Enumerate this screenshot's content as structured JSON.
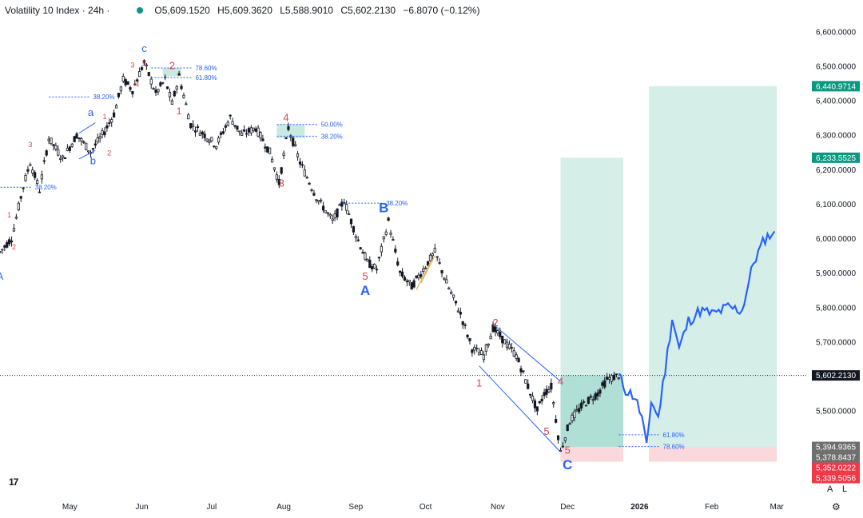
{
  "header": {
    "symbol": "Volatility 10 Index · 24h ·",
    "open": "O5,609.1520",
    "high": "H5,609.3620",
    "low": "L5,588.9010",
    "close": "C5,602.2130",
    "change": "−6.8070 (−0.12%)",
    "status_color": "#089981"
  },
  "buttons": {
    "auto": "A",
    "log": "L",
    "settings_icon": "gear-icon"
  },
  "logo_text": "17",
  "colors": {
    "candle": "#131722",
    "wave_red": "#e0424c",
    "wave_blue": "#2962ff",
    "zone_green": "#b2e0d6",
    "zone_red": "#f8c8cd",
    "badge_green": "#089981",
    "badge_red": "#f23645",
    "badge_grey": "#6e6e6e",
    "projection": "#2962ff"
  },
  "chart_data": {
    "type": "candlestick",
    "ylim": [
      5300,
      6640
    ],
    "y_ticks": [
      "6,600.0000",
      "6,500.0000",
      "6,400.0000",
      "6,300.0000",
      "6,200.0000",
      "6,100.0000",
      "6,000.0000",
      "5,900.0000",
      "5,800.0000",
      "5,700.0000",
      "5,600.0000",
      "5,500.0000"
    ],
    "x_ticks": [
      "May",
      "Jun",
      "Jul",
      "Aug",
      "Sep",
      "Oct",
      "Nov",
      "Dec",
      "2026",
      "Feb",
      "Mar"
    ],
    "x_tick_dates": [
      "2025-05-01",
      "2025-06-01",
      "2025-07-01",
      "2025-08-01",
      "2025-09-01",
      "2025-10-01",
      "2025-11-01",
      "2025-12-01",
      "2026-01-01",
      "2026-02-01",
      "2026-03-01"
    ],
    "x_range": [
      "2025-04-01",
      "2026-03-14"
    ],
    "last_price": 5602.213,
    "price_path": [
      [
        "2025-04-01",
        5960
      ],
      [
        "2025-04-06",
        6000
      ],
      [
        "2025-04-11",
        6150
      ],
      [
        "2025-04-14",
        6220
      ],
      [
        "2025-04-18",
        6140
      ],
      [
        "2025-04-22",
        6290
      ],
      [
        "2025-04-28",
        6230
      ],
      [
        "2025-05-04",
        6300
      ],
      [
        "2025-05-10",
        6250
      ],
      [
        "2025-05-16",
        6310
      ],
      [
        "2025-05-20",
        6360
      ],
      [
        "2025-05-24",
        6460
      ],
      [
        "2025-05-28",
        6430
      ],
      [
        "2025-06-02",
        6510
      ],
      [
        "2025-06-07",
        6420
      ],
      [
        "2025-06-11",
        6460
      ],
      [
        "2025-06-14",
        6390
      ],
      [
        "2025-06-17",
        6470
      ],
      [
        "2025-06-22",
        6330
      ],
      [
        "2025-06-28",
        6300
      ],
      [
        "2025-07-03",
        6270
      ],
      [
        "2025-07-09",
        6350
      ],
      [
        "2025-07-14",
        6300
      ],
      [
        "2025-07-20",
        6320
      ],
      [
        "2025-07-26",
        6250
      ],
      [
        "2025-07-30",
        6160
      ],
      [
        "2025-08-03",
        6320
      ],
      [
        "2025-08-08",
        6220
      ],
      [
        "2025-08-15",
        6120
      ],
      [
        "2025-08-22",
        6050
      ],
      [
        "2025-08-27",
        6110
      ],
      [
        "2025-09-01",
        6010
      ],
      [
        "2025-09-06",
        5930
      ],
      [
        "2025-09-10",
        5910
      ],
      [
        "2025-09-15",
        6050
      ],
      [
        "2025-09-20",
        5900
      ],
      [
        "2025-09-25",
        5860
      ],
      [
        "2025-10-01",
        5920
      ],
      [
        "2025-10-05",
        5960
      ],
      [
        "2025-10-10",
        5870
      ],
      [
        "2025-10-16",
        5780
      ],
      [
        "2025-10-21",
        5680
      ],
      [
        "2025-10-26",
        5660
      ],
      [
        "2025-10-30",
        5740
      ],
      [
        "2025-11-04",
        5700
      ],
      [
        "2025-11-09",
        5660
      ],
      [
        "2025-11-14",
        5570
      ],
      [
        "2025-11-18",
        5500
      ],
      [
        "2025-11-21",
        5550
      ],
      [
        "2025-11-24",
        5570
      ],
      [
        "2025-11-28",
        5380
      ],
      [
        "2025-12-02",
        5470
      ],
      [
        "2025-12-08",
        5520
      ],
      [
        "2025-12-14",
        5550
      ],
      [
        "2025-12-18",
        5590
      ],
      [
        "2025-12-23",
        5602
      ]
    ],
    "projection_path": [
      [
        "2025-12-23",
        5602
      ],
      [
        "2025-12-26",
        5560
      ],
      [
        "2025-12-30",
        5540
      ],
      [
        "2026-01-02",
        5480
      ],
      [
        "2026-01-04",
        5390
      ],
      [
        "2026-01-06",
        5530
      ],
      [
        "2026-01-09",
        5480
      ],
      [
        "2026-01-12",
        5620
      ],
      [
        "2026-01-15",
        5770
      ],
      [
        "2026-01-18",
        5680
      ],
      [
        "2026-01-22",
        5760
      ],
      [
        "2026-01-27",
        5790
      ],
      [
        "2026-02-02",
        5780
      ],
      [
        "2026-02-08",
        5800
      ],
      [
        "2026-02-14",
        5790
      ],
      [
        "2026-02-19",
        5930
      ],
      [
        "2026-02-24",
        6000
      ],
      [
        "2026-02-28",
        6020
      ]
    ],
    "wave_labels": [
      {
        "text": "c",
        "date": "2025-06-02",
        "price": 6540,
        "color": "blue",
        "size": "medium"
      },
      {
        "text": "2",
        "date": "2025-06-14",
        "price": 6490,
        "color": "red",
        "size": "medium"
      },
      {
        "text": "1",
        "date": "2025-06-17",
        "price": 6360,
        "color": "red",
        "size": "small"
      },
      {
        "text": "3",
        "date": "2025-05-28",
        "price": 6495,
        "color": "red",
        "size": "tiny"
      },
      {
        "text": "4",
        "date": "2025-05-30",
        "price": 6440,
        "color": "red",
        "size": "tiny"
      },
      {
        "text": "5",
        "date": "2025-06-02",
        "price": 6500,
        "color": "red",
        "size": "tiny"
      },
      {
        "text": "a",
        "date": "2025-05-10",
        "price": 6355,
        "color": "blue",
        "size": "medium"
      },
      {
        "text": "b",
        "date": "2025-05-11",
        "price": 6215,
        "color": "blue",
        "size": "medium"
      },
      {
        "text": "1",
        "date": "2025-05-16",
        "price": 6345,
        "color": "red",
        "size": "tiny"
      },
      {
        "text": "2",
        "date": "2025-05-18",
        "price": 6240,
        "color": "red",
        "size": "tiny"
      },
      {
        "text": "3",
        "date": "2025-04-14",
        "price": 6265,
        "color": "red",
        "size": "tiny"
      },
      {
        "text": "1",
        "date": "2025-04-05",
        "price": 6060,
        "color": "red",
        "size": "tiny"
      },
      {
        "text": "2",
        "date": "2025-04-07",
        "price": 5968,
        "color": "red",
        "size": "tiny"
      },
      {
        "text": "4",
        "date": "2025-08-02",
        "price": 6340,
        "color": "red",
        "size": "medium"
      },
      {
        "text": "3",
        "date": "2025-07-31",
        "price": 6150,
        "color": "red",
        "size": "medium"
      },
      {
        "text": "B",
        "date": "2025-09-13",
        "price": 6075,
        "color": "blue",
        "size": "large"
      },
      {
        "text": "5",
        "date": "2025-09-05",
        "price": 5880,
        "color": "red",
        "size": "medium"
      },
      {
        "text": "A",
        "date": "2025-09-05",
        "price": 5835,
        "color": "blue",
        "size": "large"
      },
      {
        "text": "2",
        "date": "2025-10-31",
        "price": 5745,
        "color": "red",
        "size": "medium"
      },
      {
        "text": "1",
        "date": "2025-10-24",
        "price": 5570,
        "color": "red",
        "size": "medium"
      },
      {
        "text": "4",
        "date": "2025-11-28",
        "price": 5575,
        "color": "red",
        "size": "medium"
      },
      {
        "text": "5",
        "date": "2025-11-22",
        "price": 5430,
        "color": "red",
        "size": "medium"
      },
      {
        "text": "5",
        "date": "2025-12-01",
        "price": 5375,
        "color": "red",
        "size": "medium"
      },
      {
        "text": "C",
        "date": "2025-12-01",
        "price": 5330,
        "color": "blue",
        "size": "large"
      },
      {
        "text": "A",
        "date": "2025-04-01",
        "price": 5880,
        "color": "blue",
        "size": "medium"
      }
    ],
    "fib_labels": [
      {
        "text": "78.60%",
        "date": "2025-06-24",
        "price": 6494
      },
      {
        "text": "61.80%",
        "date": "2025-06-24",
        "price": 6466
      },
      {
        "text": "38.20%",
        "date": "2025-05-11",
        "price": 6410
      },
      {
        "text": "38.20%",
        "date": "2025-04-16",
        "price": 6148
      },
      {
        "text": "50.00%",
        "date": "2025-08-17",
        "price": 6330
      },
      {
        "text": "38.20%",
        "date": "2025-08-17",
        "price": 6296
      },
      {
        "text": "38.20%",
        "date": "2025-09-14",
        "price": 6102
      },
      {
        "text": "61.80%",
        "date": "2026-01-11",
        "price": 5430
      },
      {
        "text": "78.60%",
        "date": "2026-01-11",
        "price": 5396
      }
    ],
    "zones": [
      {
        "from": "2025-11-28",
        "to": "2025-12-25",
        "top": 6233.5525,
        "bottom": 5602.213,
        "kind": "target"
      },
      {
        "from": "2025-11-28",
        "to": "2025-12-25",
        "top": 5602.213,
        "bottom": 5394.9365,
        "kind": "entry"
      },
      {
        "from": "2025-11-28",
        "to": "2025-12-25",
        "top": 5394.9365,
        "bottom": 5352.0222,
        "kind": "stop"
      },
      {
        "from": "2026-01-05",
        "to": "2026-03-01",
        "top": 6440.9714,
        "bottom": 5394.9365,
        "kind": "target"
      },
      {
        "from": "2026-01-05",
        "to": "2026-03-01",
        "top": 5394.9365,
        "bottom": 5352.0222,
        "kind": "stop"
      }
    ],
    "price_badges": [
      {
        "text": "6,440.9714",
        "value": 6440.9714,
        "kind": "green"
      },
      {
        "text": "6,233.5525",
        "value": 6233.5525,
        "kind": "green"
      },
      {
        "text": "5,602.2130",
        "value": 5602.213,
        "kind": "last"
      },
      {
        "text": "5,394.9365",
        "value": 5394.9365,
        "kind": "grey"
      },
      {
        "text": "5,378.8437",
        "value": 5378.8437,
        "kind": "grey"
      },
      {
        "text": "5,352.0222",
        "value": 5352.0222,
        "kind": "red"
      },
      {
        "text": "5,339.5056",
        "value": 5339.5056,
        "kind": "red"
      }
    ]
  }
}
